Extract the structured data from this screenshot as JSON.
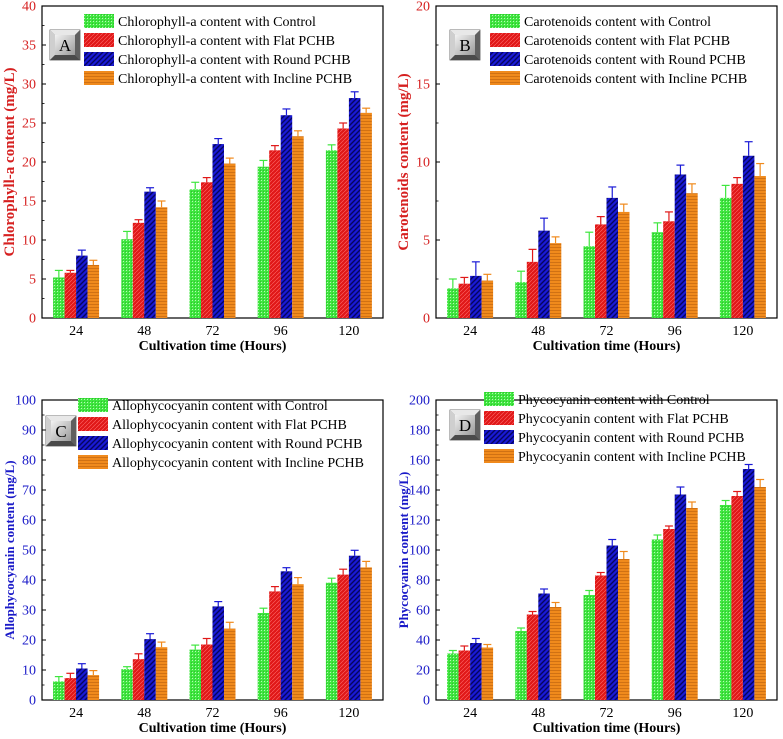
{
  "colors": {
    "control": "#3fe63f",
    "flat": "#e01818",
    "round": "#1a1ad6",
    "incline": "#f08a1c",
    "axis_red": "#d62020",
    "axis_blue": "#1a1ac8"
  },
  "chart_data": [
    {
      "type": "bar",
      "panel_label": "A",
      "xlabel": "Cultivation time (Hours)",
      "ylabel": "Chlorophyll-a content (mg/L)",
      "ylabel_color": "red",
      "ylim": [
        0,
        40
      ],
      "yticks": [
        0,
        5,
        10,
        15,
        20,
        25,
        30,
        35,
        40
      ],
      "categories": [
        "24",
        "48",
        "72",
        "96",
        "120"
      ],
      "legend_position": "top-left",
      "series": [
        {
          "name": "Chlorophyll-a content with Control",
          "values": [
            5.2,
            10.1,
            16.5,
            19.4,
            21.5
          ],
          "errors": [
            0.9,
            1.0,
            0.9,
            0.8,
            0.7
          ]
        },
        {
          "name": "Chlorophyll-a content with Flat PCHB",
          "values": [
            5.8,
            12.2,
            17.4,
            21.5,
            24.3
          ],
          "errors": [
            0.3,
            0.4,
            0.6,
            0.6,
            0.7
          ]
        },
        {
          "name": "Chlorophyll-a content with Round PCHB",
          "values": [
            8.0,
            16.2,
            22.3,
            26.0,
            28.2
          ],
          "errors": [
            0.7,
            0.5,
            0.7,
            0.8,
            0.8
          ]
        },
        {
          "name": "Chlorophyll-a content with Incline PCHB",
          "values": [
            6.8,
            14.2,
            19.8,
            23.3,
            26.3
          ],
          "errors": [
            0.6,
            0.8,
            0.7,
            0.7,
            0.6
          ]
        }
      ]
    },
    {
      "type": "bar",
      "panel_label": "B",
      "xlabel": "Cultivation time (Hours)",
      "ylabel": "Carotenoids content (mg/L)",
      "ylabel_color": "red",
      "ylim": [
        0,
        20
      ],
      "yticks": [
        0,
        5,
        10,
        15,
        20
      ],
      "categories": [
        "24",
        "48",
        "72",
        "96",
        "120"
      ],
      "legend_position": "top-center",
      "series": [
        {
          "name": "Carotenoids content with Control",
          "values": [
            1.9,
            2.3,
            4.6,
            5.5,
            7.7
          ],
          "errors": [
            0.6,
            0.7,
            0.9,
            0.6,
            0.8
          ]
        },
        {
          "name": "Carotenoids content with Flat PCHB",
          "values": [
            2.2,
            3.6,
            6.0,
            6.2,
            8.6
          ],
          "errors": [
            0.4,
            0.8,
            0.5,
            0.6,
            0.4
          ]
        },
        {
          "name": "Carotenoids content with Round PCHB",
          "values": [
            2.7,
            5.6,
            7.7,
            9.2,
            10.4
          ],
          "errors": [
            0.9,
            0.8,
            0.7,
            0.6,
            0.9
          ]
        },
        {
          "name": "Carotenoids content with Incline PCHB",
          "values": [
            2.4,
            4.8,
            6.8,
            8.0,
            9.1
          ],
          "errors": [
            0.4,
            0.4,
            0.5,
            0.6,
            0.8
          ]
        }
      ]
    },
    {
      "type": "bar",
      "panel_label": "C",
      "xlabel": "Cultivation time (Hours)",
      "ylabel": "Allophycocyanin content (mg/L)",
      "ylabel_color": "blue",
      "ylim": [
        0,
        100
      ],
      "yticks": [
        0,
        10,
        20,
        30,
        40,
        50,
        60,
        70,
        80,
        90,
        100
      ],
      "categories": [
        "24",
        "48",
        "72",
        "96",
        "120"
      ],
      "legend_position": "top-center",
      "series": [
        {
          "name": "Allophycocyanin content with Control",
          "values": [
            6.2,
            10.3,
            16.8,
            29.0,
            39.1
          ],
          "errors": [
            1.6,
            0.8,
            1.5,
            1.6,
            1.5
          ]
        },
        {
          "name": "Allophycocyanin content with Flat PCHB",
          "values": [
            7.3,
            13.6,
            18.5,
            36.2,
            41.8
          ],
          "errors": [
            1.6,
            1.8,
            2.0,
            1.6,
            1.8
          ]
        },
        {
          "name": "Allophycocyanin content with Round PCHB",
          "values": [
            10.5,
            20.3,
            31.2,
            42.9,
            48.1
          ],
          "errors": [
            1.6,
            1.8,
            1.6,
            1.2,
            1.8
          ]
        },
        {
          "name": "Allophycocyanin content with Incline PCHB",
          "values": [
            8.3,
            17.6,
            23.8,
            38.6,
            44.2
          ],
          "errors": [
            1.5,
            1.7,
            2.1,
            2.2,
            2.0
          ]
        }
      ]
    },
    {
      "type": "bar",
      "panel_label": "D",
      "xlabel": "Cultivation time (Hours)",
      "ylabel": "Phycocyanin content (mg/L)",
      "ylabel_color": "blue",
      "ylim": [
        0,
        200
      ],
      "yticks": [
        0,
        20,
        40,
        60,
        80,
        100,
        120,
        140,
        160,
        180,
        200
      ],
      "categories": [
        "24",
        "48",
        "72",
        "96",
        "120"
      ],
      "legend_position": "top-left",
      "series": [
        {
          "name": "Phycocyanin content with Control",
          "values": [
            31,
            46,
            70,
            107,
            130
          ],
          "errors": [
            2,
            2,
            3,
            3,
            3
          ]
        },
        {
          "name": "Phycocyanin content with Flat PCHB",
          "values": [
            33,
            57,
            83,
            114,
            136
          ],
          "errors": [
            3,
            2,
            2,
            2,
            3
          ]
        },
        {
          "name": "Phycocyanin content with Round PCHB",
          "values": [
            38,
            71,
            103,
            137,
            154
          ],
          "errors": [
            3,
            3,
            4,
            5,
            3
          ]
        },
        {
          "name": "Phycocyanin content with Incline PCHB",
          "values": [
            35,
            62,
            94,
            128,
            142
          ],
          "errors": [
            2,
            3,
            5,
            4,
            5
          ]
        }
      ]
    }
  ]
}
